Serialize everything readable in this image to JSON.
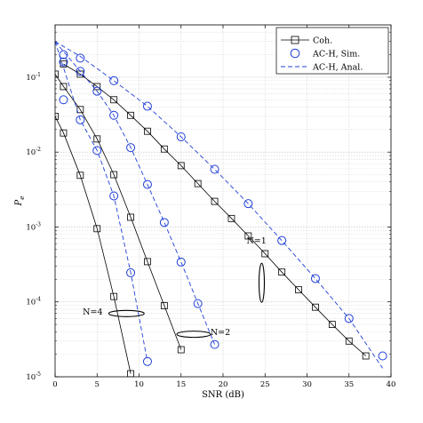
{
  "chart_data": {
    "type": "line",
    "xlabel": "SNR (dB)",
    "ylabel": "P_e",
    "xlim": [
      0,
      40
    ],
    "ylim": [
      1e-05,
      0.5
    ],
    "yscale": "log",
    "grid": true,
    "legend_position": "top-right",
    "x_ticks": [
      0,
      5,
      10,
      15,
      20,
      25,
      30,
      35,
      40
    ],
    "x_tick_labels": [
      "0",
      "5",
      "10",
      "15",
      "20",
      "25",
      "30",
      "35",
      "40"
    ],
    "y_ticks": [
      1e-05,
      0.0001,
      0.001,
      0.01,
      0.1
    ],
    "y_tick_labels": [
      {
        "base": "10",
        "exp": "-5"
      },
      {
        "base": "10",
        "exp": "-4"
      },
      {
        "base": "10",
        "exp": "-3"
      },
      {
        "base": "10",
        "exp": "-2"
      },
      {
        "base": "10",
        "exp": "-1"
      }
    ],
    "legend": [
      {
        "label": "Coh.",
        "style": "solid-square"
      },
      {
        "label": "AC-H, Sim.",
        "style": "circle"
      },
      {
        "label": "AC-H, Anal.",
        "style": "dashed"
      }
    ],
    "colors": {
      "coh": "#000000",
      "ach": "#1f3fd6"
    },
    "series": [
      {
        "group": "N=1",
        "kind": "Coh.",
        "x": [
          1,
          3,
          5,
          7,
          9,
          11,
          13,
          15,
          17,
          19,
          21,
          23,
          25,
          27,
          29,
          31,
          33,
          35,
          37
        ],
        "y": [
          0.15,
          0.11,
          0.075,
          0.05,
          0.031,
          0.019,
          0.011,
          0.0066,
          0.0038,
          0.0022,
          0.0013,
          0.00076,
          0.00044,
          0.00025,
          0.000145,
          8.5e-05,
          5e-05,
          3e-05,
          1.9e-05
        ]
      },
      {
        "group": "N=1",
        "kind": "AC-H, Sim.",
        "x": [
          1,
          3,
          7,
          11,
          15,
          19,
          23,
          27,
          31,
          35,
          39
        ],
        "y": [
          0.2,
          0.18,
          0.09,
          0.041,
          0.016,
          0.0059,
          0.00205,
          0.00066,
          0.000205,
          6e-05,
          1.9e-05
        ]
      },
      {
        "group": "N=1",
        "kind": "AC-H, Anal.",
        "x": [
          0,
          3,
          7,
          11,
          15,
          19,
          23,
          27,
          31,
          35,
          39
        ],
        "y": [
          0.3,
          0.19,
          0.09,
          0.041,
          0.016,
          0.0059,
          0.00205,
          0.00066,
          0.000205,
          6e-05,
          1.3e-05
        ]
      },
      {
        "group": "N=2",
        "kind": "Coh.",
        "x": [
          0,
          1,
          3,
          5,
          7,
          9,
          11,
          13,
          15
        ],
        "y": [
          0.11,
          0.075,
          0.037,
          0.015,
          0.005,
          0.00135,
          0.000345,
          8.9e-05,
          2.3e-05
        ]
      },
      {
        "group": "N=2",
        "kind": "AC-H, Sim.",
        "x": [
          1,
          3,
          5,
          7,
          9,
          11,
          13,
          15,
          17,
          19
        ],
        "y": [
          0.16,
          0.12,
          0.065,
          0.031,
          0.0115,
          0.0037,
          0.00115,
          0.00034,
          9.5e-05,
          2.7e-05
        ]
      },
      {
        "group": "N=2",
        "kind": "AC-H, Anal.",
        "x": [
          0,
          3,
          5,
          7,
          9,
          11,
          13,
          15,
          17,
          19
        ],
        "y": [
          0.3,
          0.12,
          0.065,
          0.031,
          0.0115,
          0.0037,
          0.00115,
          0.00034,
          9.5e-05,
          2.7e-05
        ]
      },
      {
        "group": "N=4",
        "kind": "Coh.",
        "x": [
          0,
          1,
          3,
          5,
          7,
          9
        ],
        "y": [
          0.03,
          0.018,
          0.0049,
          0.00095,
          0.000118,
          1.1e-05
        ]
      },
      {
        "group": "N=4",
        "kind": "AC-H, Sim.",
        "x": [
          1,
          3,
          5,
          7,
          9,
          11
        ],
        "y": [
          0.05,
          0.027,
          0.0105,
          0.0026,
          0.000245,
          1.6e-05
        ]
      },
      {
        "group": "N=4",
        "kind": "AC-H, Anal.",
        "x": [
          0,
          3,
          5,
          7,
          9,
          11
        ],
        "y": [
          0.3,
          0.027,
          0.0105,
          0.0026,
          0.000245,
          1.6e-05
        ]
      }
    ],
    "annotations": [
      {
        "text": "N=1",
        "x": 22.8,
        "y": 0.00065,
        "ellipse": {
          "cx": 24.6,
          "cy": 0.00018
        }
      },
      {
        "text": "N=2",
        "x": 18.5,
        "y": 3.9e-05,
        "ellipse": {
          "cx": 16.5,
          "cy": 3.7e-05
        }
      },
      {
        "text": "N=4",
        "x": 3.3,
        "y": 7.3e-05,
        "ellipse": {
          "cx": 8.5,
          "cy": 7e-05
        }
      }
    ]
  }
}
